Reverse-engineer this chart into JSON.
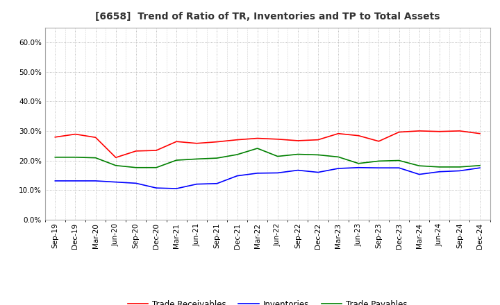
{
  "title": "[6658]  Trend of Ratio of TR, Inventories and TP to Total Assets",
  "x_labels": [
    "Sep-19",
    "Dec-19",
    "Mar-20",
    "Jun-20",
    "Sep-20",
    "Dec-20",
    "Mar-21",
    "Jun-21",
    "Sep-21",
    "Dec-21",
    "Mar-22",
    "Jun-22",
    "Sep-22",
    "Dec-22",
    "Mar-23",
    "Jun-23",
    "Sep-23",
    "Dec-23",
    "Mar-24",
    "Jun-24",
    "Sep-24",
    "Dec-24"
  ],
  "trade_receivables": [
    0.279,
    0.289,
    0.278,
    0.21,
    0.232,
    0.234,
    0.264,
    0.258,
    0.263,
    0.27,
    0.275,
    0.272,
    0.267,
    0.27,
    0.291,
    0.284,
    0.265,
    0.296,
    0.3,
    0.298,
    0.3,
    0.291
  ],
  "inventories": [
    0.131,
    0.131,
    0.131,
    0.127,
    0.123,
    0.107,
    0.105,
    0.12,
    0.122,
    0.148,
    0.157,
    0.158,
    0.167,
    0.16,
    0.173,
    0.176,
    0.175,
    0.175,
    0.153,
    0.162,
    0.165,
    0.175
  ],
  "trade_payables": [
    0.211,
    0.211,
    0.209,
    0.183,
    0.176,
    0.176,
    0.201,
    0.205,
    0.208,
    0.22,
    0.241,
    0.214,
    0.221,
    0.219,
    0.212,
    0.19,
    0.198,
    0.2,
    0.182,
    0.178,
    0.178,
    0.183
  ],
  "line_color_tr": "#FF0000",
  "line_color_inv": "#0000FF",
  "line_color_tp": "#008000",
  "ylim": [
    0.0,
    0.65
  ],
  "yticks": [
    0.0,
    0.1,
    0.2,
    0.3,
    0.4,
    0.5,
    0.6
  ],
  "background_color": "#FFFFFF",
  "grid_color": "#AAAAAA",
  "legend_tr": "Trade Receivables",
  "legend_inv": "Inventories",
  "legend_tp": "Trade Payables"
}
